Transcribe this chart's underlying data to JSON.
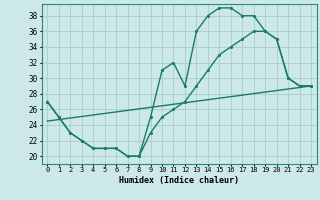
{
  "xlabel": "Humidex (Indice chaleur)",
  "background_color": "#cce8e8",
  "grid_color": "#aacccc",
  "line_color": "#1a7a6e",
  "xlim": [
    -0.5,
    23.5
  ],
  "ylim": [
    19.0,
    39.5
  ],
  "yticks": [
    20,
    22,
    24,
    26,
    28,
    30,
    32,
    34,
    36,
    38
  ],
  "xticks": [
    0,
    1,
    2,
    3,
    4,
    5,
    6,
    7,
    8,
    9,
    10,
    11,
    12,
    13,
    14,
    15,
    16,
    17,
    18,
    19,
    20,
    21,
    22,
    23
  ],
  "xtick_labels": [
    "0",
    "1",
    "2",
    "3",
    "4",
    "5",
    "6",
    "7",
    "8",
    "9",
    "10",
    "11",
    "12",
    "13",
    "14",
    "15",
    "16",
    "17",
    "18",
    "19",
    "20",
    "21",
    "22",
    "23"
  ],
  "line1_x": [
    0,
    1,
    2,
    3,
    4,
    5,
    6,
    7,
    8,
    9,
    10,
    11,
    12,
    13,
    14,
    15,
    16,
    17,
    18,
    19,
    20,
    21,
    22,
    23
  ],
  "line1_y": [
    27,
    25,
    23,
    22,
    21,
    21,
    21,
    20,
    20,
    25,
    31,
    32,
    29,
    36,
    38,
    39,
    39,
    38,
    38,
    36,
    35,
    30,
    29,
    29
  ],
  "line2_x": [
    0,
    1,
    2,
    3,
    4,
    5,
    6,
    7,
    8,
    9,
    10,
    11,
    12,
    13,
    14,
    15,
    16,
    17,
    18,
    19,
    20,
    21,
    22,
    23
  ],
  "line2_y": [
    27,
    25,
    23,
    22,
    21,
    21,
    21,
    20,
    20,
    23,
    25,
    26,
    27,
    29,
    31,
    33,
    34,
    35,
    36,
    36,
    35,
    30,
    29,
    29
  ],
  "line3_x": [
    0,
    23
  ],
  "line3_y": [
    24.5,
    29
  ]
}
